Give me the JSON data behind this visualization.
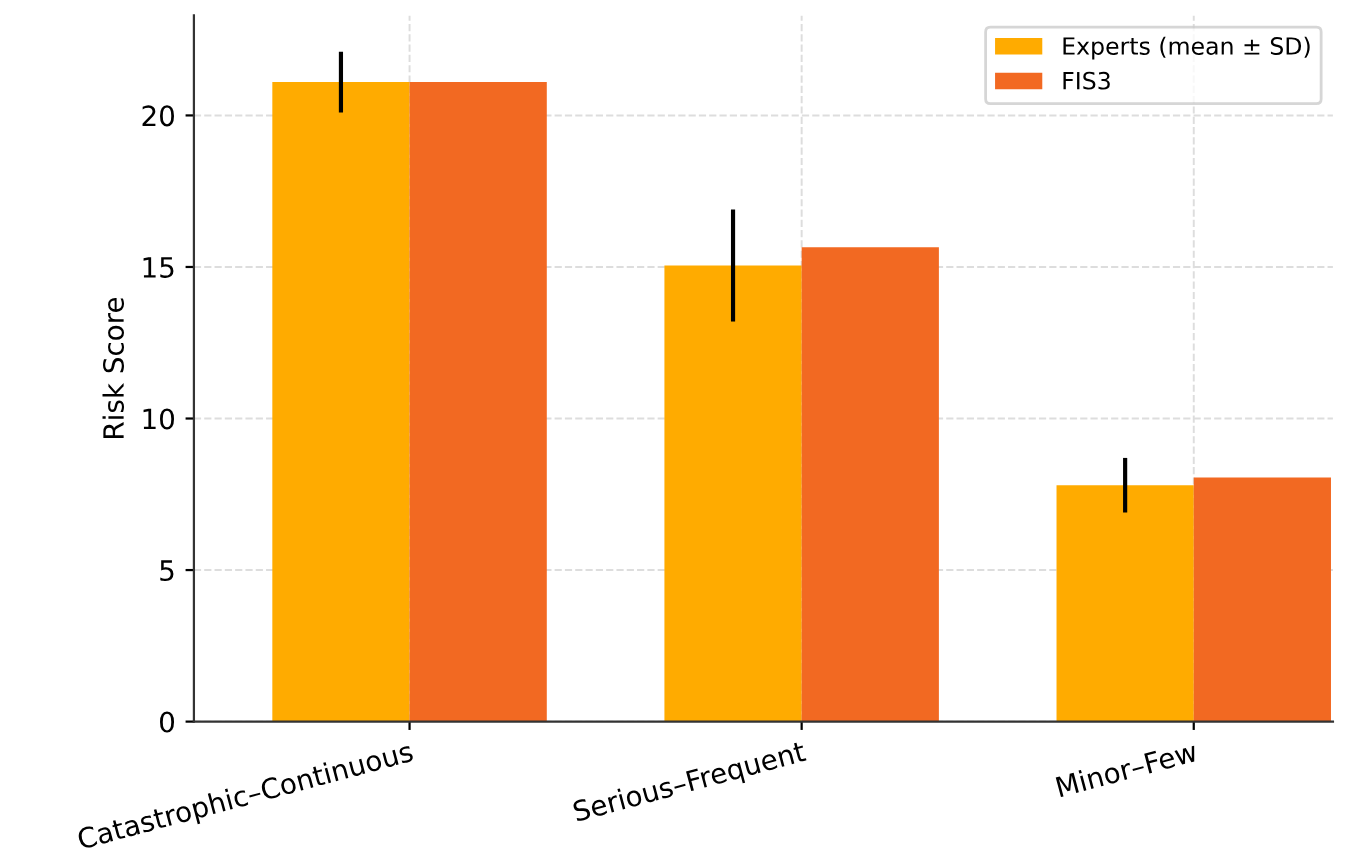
{
  "chart_data": {
    "type": "bar",
    "ylabel": "Risk Score",
    "categories": [
      "Catastrophic–Continuous",
      "Serious–Frequent",
      "Minor–Few"
    ],
    "series": [
      {
        "name": "Experts (mean ± SD)",
        "color": "#ffab00",
        "values": [
          21.1,
          15.05,
          7.8
        ],
        "errors": [
          1.0,
          1.85,
          0.9
        ]
      },
      {
        "name": "FIS3",
        "color": "#f26922",
        "values": [
          21.1,
          15.65,
          8.05
        ]
      }
    ],
    "ylim": [
      0,
      23.3
    ],
    "yticks": [
      0,
      5,
      10,
      15,
      20
    ],
    "grid": true,
    "legend": "top right"
  }
}
